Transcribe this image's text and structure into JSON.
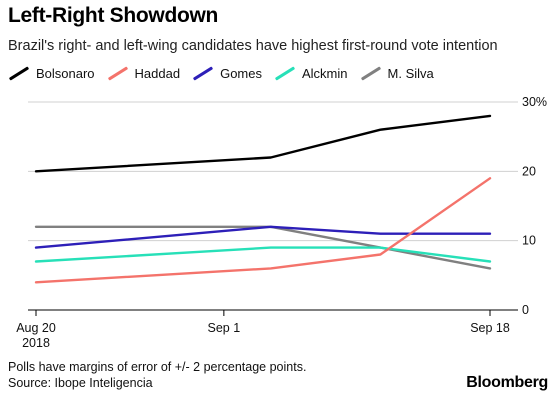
{
  "title": "Left-Right Showdown",
  "subtitle": "Brazil's right- and left-wing candidates have highest first-round vote intention",
  "note": "Polls have margins of error of +/- 2 percentage points.",
  "source": "Source: Ibope Inteligencia",
  "brand": "Bloomberg",
  "chart_data": {
    "type": "line",
    "title": "Left-Right Showdown",
    "subtitle": "Brazil's right- and left-wing candidates have highest first-round vote intention",
    "xlabel": "",
    "ylabel": "",
    "x": [
      "2018-08-20",
      "2018-09-04",
      "2018-09-11",
      "2018-09-18"
    ],
    "x_ticks": [
      {
        "date": "2018-08-20",
        "label": "Aug 20",
        "sublabel": "2018"
      },
      {
        "date": "2018-09-01",
        "label": "Sep 1",
        "sublabel": ""
      },
      {
        "date": "2018-09-18",
        "label": "Sep 18",
        "sublabel": ""
      }
    ],
    "xlim": [
      "2018-08-20",
      "2018-09-18"
    ],
    "y_ticks": [
      {
        "value": 0,
        "label": "0"
      },
      {
        "value": 10,
        "label": "10"
      },
      {
        "value": 20,
        "label": "20"
      },
      {
        "value": 30,
        "label": "30%"
      }
    ],
    "ylim": [
      0,
      30
    ],
    "grid": true,
    "legend_position": "top-left",
    "series": [
      {
        "name": "Bolsonaro",
        "color": "#000000",
        "values": [
          20,
          22,
          26,
          28
        ]
      },
      {
        "name": "Haddad",
        "color": "#f4736b",
        "values": [
          4,
          6,
          8,
          19
        ]
      },
      {
        "name": "Gomes",
        "color": "#2d1fb8",
        "values": [
          9,
          12,
          11,
          11
        ]
      },
      {
        "name": "Alckmin",
        "color": "#27e0b8",
        "values": [
          7,
          9,
          9,
          7
        ]
      },
      {
        "name": "M. Silva",
        "color": "#808080",
        "values": [
          12,
          12,
          9,
          6
        ]
      }
    ]
  }
}
